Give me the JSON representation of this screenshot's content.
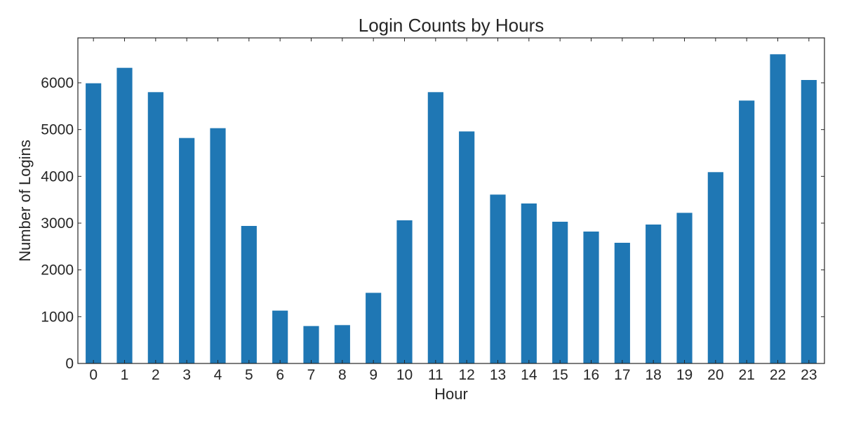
{
  "chart_data": {
    "type": "bar",
    "title": "Login Counts by Hours",
    "xlabel": "Hour",
    "ylabel": "Number of Logins",
    "categories": [
      "0",
      "1",
      "2",
      "3",
      "4",
      "5",
      "6",
      "7",
      "8",
      "9",
      "10",
      "11",
      "12",
      "13",
      "14",
      "15",
      "16",
      "17",
      "18",
      "19",
      "20",
      "21",
      "22",
      "23"
    ],
    "values": [
      5990,
      6320,
      5800,
      4820,
      5030,
      2940,
      1130,
      800,
      820,
      1510,
      3060,
      5800,
      4960,
      3610,
      3420,
      3030,
      2820,
      2580,
      2970,
      3220,
      4090,
      5620,
      6610,
      6060
    ],
    "ylim": [
      0,
      6960
    ],
    "yticks": [
      0,
      1000,
      2000,
      3000,
      4000,
      5000,
      6000
    ],
    "bar_color": "#1f77b4",
    "grid": false,
    "legend": "none"
  }
}
